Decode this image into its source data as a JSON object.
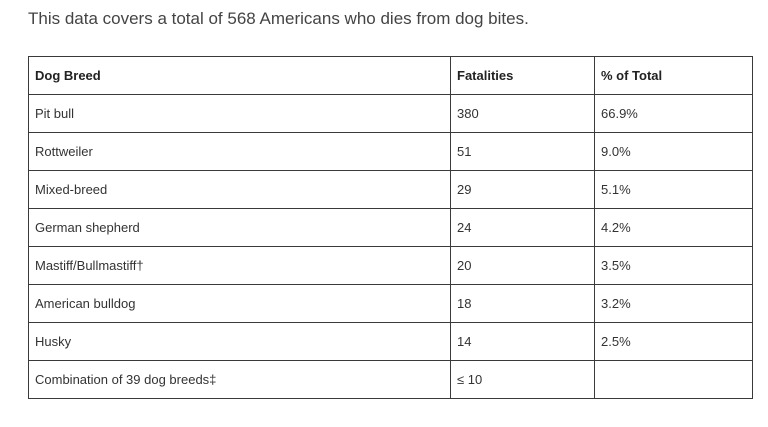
{
  "intro": "This data covers a total of 568 Americans who dies from dog bites.",
  "table": {
    "headers": [
      "Dog Breed",
      "Fatalities",
      "% of Total"
    ],
    "rows": [
      [
        "Pit bull",
        "380",
        "66.9%"
      ],
      [
        "Rottweiler",
        "51",
        "9.0%"
      ],
      [
        "Mixed-breed",
        "29",
        "5.1%"
      ],
      [
        "German shepherd",
        "24",
        "4.2%"
      ],
      [
        "Mastiff/Bullmastiff†",
        "20",
        "3.5%"
      ],
      [
        "American bulldog",
        "18",
        "3.2%"
      ],
      [
        "Husky",
        "14",
        "2.5%"
      ],
      [
        "Combination of 39 dog breeds‡",
        "≤ 10",
        ""
      ]
    ]
  }
}
